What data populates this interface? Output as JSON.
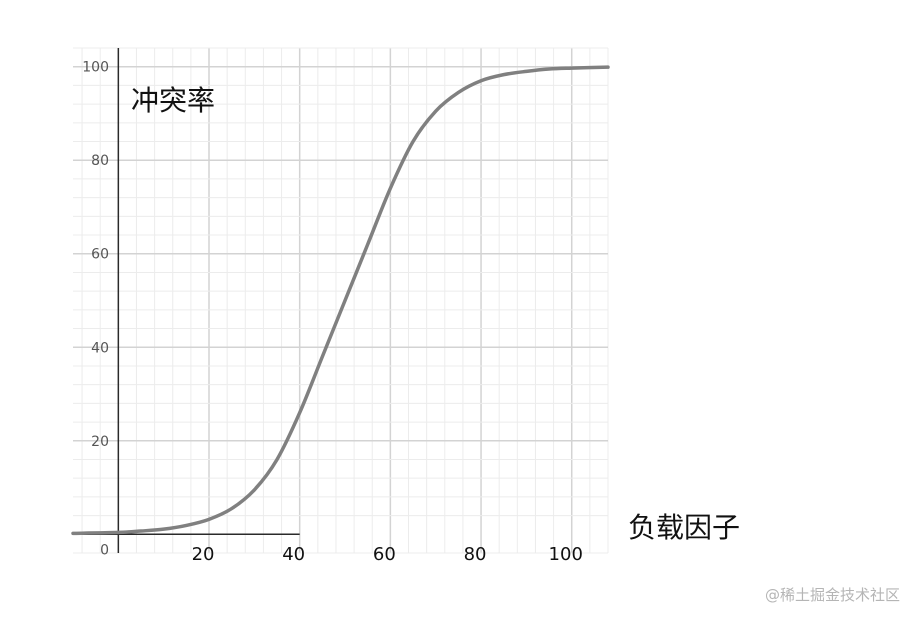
{
  "chart_data": {
    "type": "line",
    "ylabel": "冲突率",
    "xlabel": "负载因子",
    "xlim": [
      -10,
      108
    ],
    "ylim": [
      -4,
      104
    ],
    "x_ticks": [
      20,
      40,
      60,
      80,
      100
    ],
    "y_ticks": [
      0,
      20,
      40,
      60,
      80,
      100
    ],
    "x_grid_major_step": 20,
    "y_grid_major_step": 20,
    "minor_grid_step": 4,
    "grid": true,
    "series": [
      {
        "color": "#808080",
        "x": [
          -10,
          0,
          5,
          10,
          15,
          20,
          25,
          30,
          35,
          40,
          45,
          50,
          55,
          60,
          65,
          70,
          75,
          80,
          85,
          90,
          95,
          100,
          108
        ],
        "y": [
          0.2,
          0.4,
          0.7,
          1.1,
          1.9,
          3.2,
          5.5,
          9.5,
          16,
          26,
          38,
          50,
          62,
          74,
          84,
          90.5,
          94.5,
          97,
          98.3,
          99,
          99.5,
          99.7,
          99.9
        ]
      }
    ]
  },
  "watermark": "@稀土掘金技术社区"
}
